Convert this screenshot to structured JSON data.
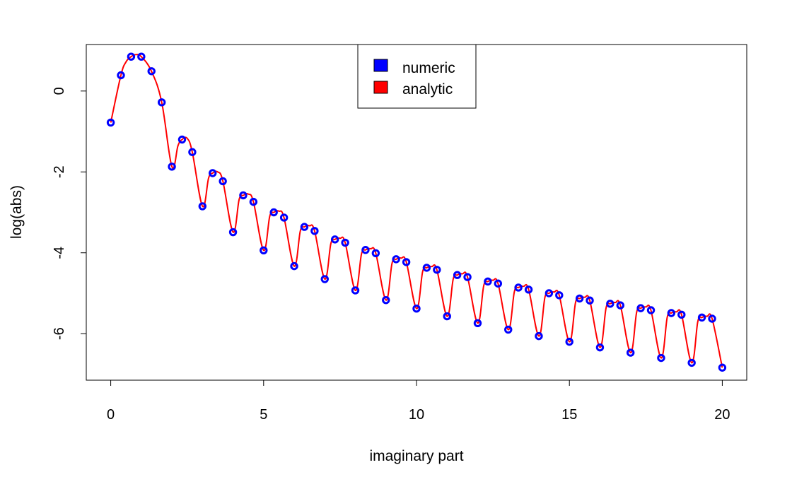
{
  "chart_data": {
    "type": "scatter",
    "title": "",
    "xlabel": "imaginary part",
    "ylabel": "log(abs)",
    "xlim": [
      -0.8,
      20.8
    ],
    "ylim": [
      -7.15,
      1.15
    ],
    "x_ticks": [
      0,
      5,
      10,
      15,
      20
    ],
    "x_tick_labels": [
      "0",
      "5",
      "10",
      "15",
      "20"
    ],
    "y_ticks": [
      0,
      -2,
      -4,
      -6
    ],
    "y_tick_labels": [
      "0",
      "-2",
      "-4",
      "-6"
    ],
    "grid": false,
    "legend": {
      "position": "top-center",
      "entries": [
        {
          "label": "numeric",
          "color": "#0000ff"
        },
        {
          "label": "analytic",
          "color": "#ff0000"
        }
      ]
    },
    "series": [
      {
        "name": "numeric",
        "style": "points",
        "color": "#0000ff",
        "x": [
          0,
          0.333,
          0.667,
          1.0,
          1.333,
          1.667,
          2.0,
          2.333,
          2.667,
          3.0,
          3.333,
          3.667,
          4.0,
          4.333,
          4.667,
          5.0,
          5.333,
          5.667,
          6.0,
          6.333,
          6.667,
          7.0,
          7.333,
          7.667,
          8.0,
          8.333,
          8.667,
          9.0,
          9.333,
          9.667,
          10.0,
          10.333,
          10.667,
          11.0,
          11.333,
          11.667,
          12.0,
          12.333,
          12.667,
          13.0,
          13.333,
          13.667,
          14.0,
          14.333,
          14.667,
          15.0,
          15.333,
          15.667,
          16.0,
          16.333,
          16.667,
          17.0,
          17.333,
          17.667,
          18.0,
          18.333,
          18.667,
          19.0,
          19.333,
          19.667,
          20.0
        ],
        "y": [
          -0.78,
          0.39,
          0.85,
          0.85,
          0.49,
          -0.28,
          -1.87,
          -1.2,
          -1.51,
          -2.85,
          -2.03,
          -2.23,
          -3.49,
          -2.58,
          -2.74,
          -3.94,
          -3.0,
          -3.13,
          -4.33,
          -3.36,
          -3.46,
          -4.65,
          -3.67,
          -3.75,
          -4.93,
          -3.93,
          -4.01,
          -5.17,
          -4.16,
          -4.23,
          -5.38,
          -4.37,
          -4.42,
          -5.57,
          -4.55,
          -4.6,
          -5.74,
          -4.71,
          -4.76,
          -5.9,
          -4.86,
          -4.91,
          -6.06,
          -5.0,
          -5.05,
          -6.2,
          -5.13,
          -5.18,
          -6.34,
          -5.26,
          -5.3,
          -6.47,
          -5.37,
          -5.42,
          -6.6,
          -5.49,
          -5.53,
          -6.72,
          -5.6,
          -5.63,
          -6.84
        ]
      },
      {
        "name": "analytic",
        "style": "line",
        "color": "#ff0000",
        "x": [
          0,
          0.333,
          0.5,
          0.667,
          0.83,
          1.0,
          1.333,
          1.667,
          2.0,
          2.2,
          2.333,
          2.5,
          2.667,
          3.0,
          3.2,
          3.333,
          3.5,
          3.667,
          4.0,
          4.2,
          4.333,
          4.5,
          4.667,
          5.0,
          5.2,
          5.333,
          5.5,
          5.667,
          6.0,
          6.2,
          6.333,
          6.5,
          6.667,
          7.0,
          7.2,
          7.333,
          7.5,
          7.667,
          8.0,
          8.2,
          8.333,
          8.5,
          8.667,
          9.0,
          9.2,
          9.333,
          9.5,
          9.667,
          10.0,
          10.2,
          10.333,
          10.5,
          10.667,
          11.0,
          11.2,
          11.333,
          11.5,
          11.667,
          12.0,
          12.2,
          12.333,
          12.5,
          12.667,
          13.0,
          13.2,
          13.333,
          13.5,
          13.667,
          14.0,
          14.2,
          14.333,
          14.5,
          14.667,
          15.0,
          15.2,
          15.333,
          15.5,
          15.667,
          16.0,
          16.2,
          16.333,
          16.5,
          16.667,
          17.0,
          17.2,
          17.333,
          17.5,
          17.667,
          18.0,
          18.2,
          18.333,
          18.5,
          18.667,
          19.0,
          19.2,
          19.333,
          19.5,
          19.667,
          20.0
        ],
        "y": [
          -0.78,
          0.39,
          0.72,
          0.85,
          0.9,
          0.85,
          0.49,
          -0.28,
          -1.87,
          -1.35,
          -1.2,
          -1.17,
          -1.51,
          -2.85,
          -2.15,
          -2.03,
          -2.0,
          -2.23,
          -3.49,
          -2.68,
          -2.58,
          -2.55,
          -2.74,
          -3.94,
          -3.1,
          -3.0,
          -2.97,
          -3.13,
          -4.33,
          -3.46,
          -3.36,
          -3.33,
          -3.46,
          -4.65,
          -3.77,
          -3.67,
          -3.64,
          -3.75,
          -4.93,
          -4.03,
          -3.93,
          -3.9,
          -4.01,
          -5.17,
          -4.26,
          -4.16,
          -4.13,
          -4.23,
          -5.38,
          -4.47,
          -4.37,
          -4.34,
          -4.42,
          -5.57,
          -4.65,
          -4.55,
          -4.52,
          -4.6,
          -5.74,
          -4.81,
          -4.71,
          -4.68,
          -4.76,
          -5.9,
          -4.96,
          -4.86,
          -4.83,
          -4.91,
          -6.06,
          -5.1,
          -5.0,
          -4.97,
          -5.05,
          -6.2,
          -5.23,
          -5.13,
          -5.1,
          -5.18,
          -6.34,
          -5.36,
          -5.26,
          -5.23,
          -5.3,
          -6.47,
          -5.47,
          -5.37,
          -5.34,
          -5.42,
          -6.6,
          -5.59,
          -5.49,
          -5.46,
          -5.53,
          -6.72,
          -5.7,
          -5.6,
          -5.57,
          -5.63,
          -6.84
        ]
      }
    ]
  }
}
